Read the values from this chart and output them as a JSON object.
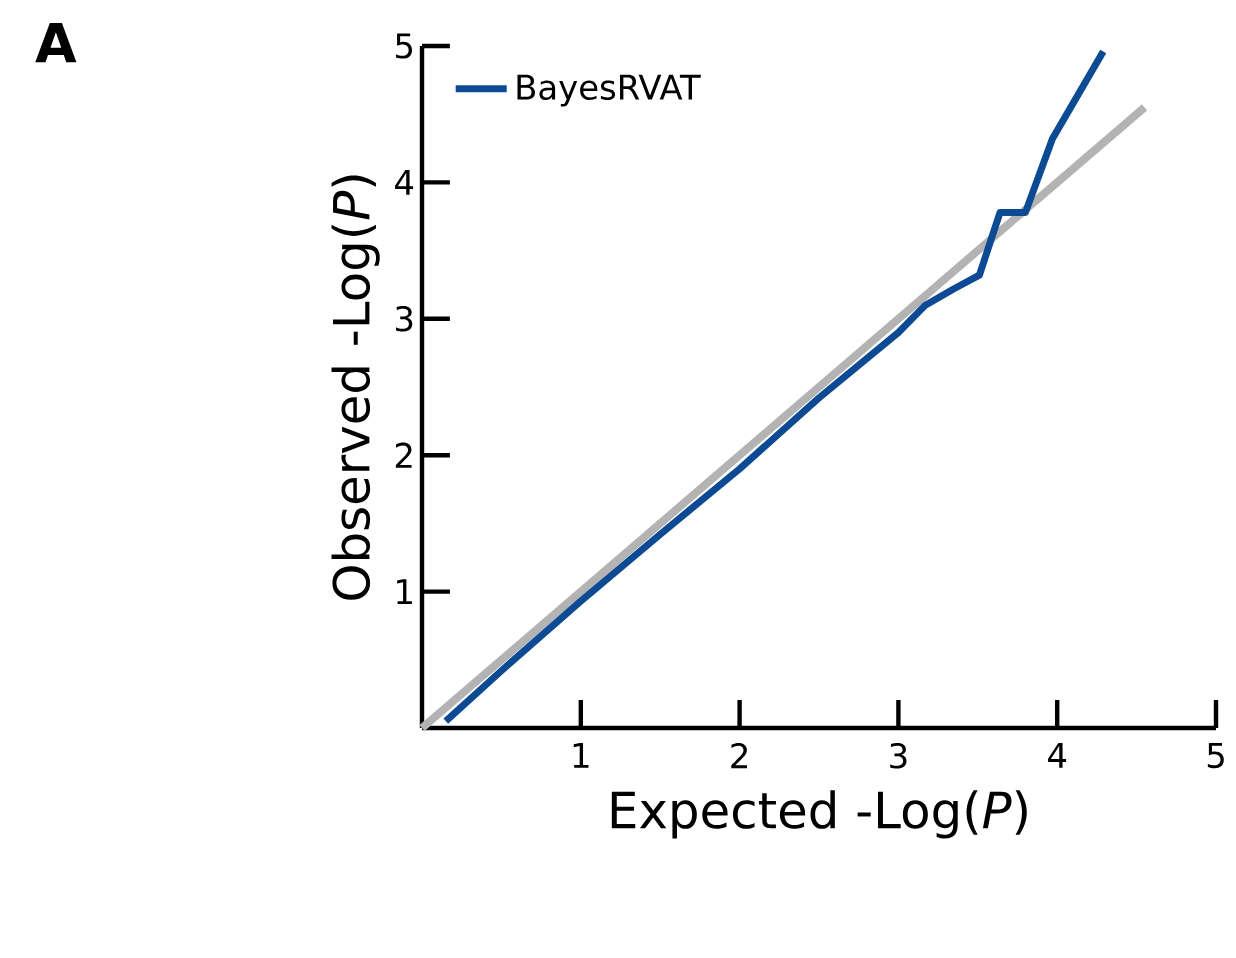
{
  "chart_data": {
    "type": "line",
    "annotations": [
      "A"
    ],
    "xlabel": "Expected -Log(*P*)",
    "ylabel": "Observed -Log(*P*)",
    "xlim": [
      0,
      5
    ],
    "ylim": [
      0,
      5
    ],
    "xticks": [
      1,
      2,
      3,
      4,
      5
    ],
    "yticks": [
      1,
      2,
      3,
      4,
      5
    ],
    "legend": "top left",
    "series": [
      {
        "color": "#b3b3b3",
        "x": [
          0,
          4.55
        ],
        "values": [
          0,
          4.55
        ]
      },
      {
        "name": "BayesRVAT",
        "color": "#0d4a94",
        "x": [
          0.15,
          0.5,
          1,
          1.5,
          2,
          2.5,
          3,
          3.17,
          3.35,
          3.51,
          3.64,
          3.8,
          3.97,
          4.29
        ],
        "values": [
          0.05,
          0.42,
          0.93,
          1.42,
          1.9,
          2.42,
          2.9,
          3.1,
          3.22,
          3.32,
          3.78,
          3.78,
          4.32,
          4.96
        ]
      }
    ]
  }
}
